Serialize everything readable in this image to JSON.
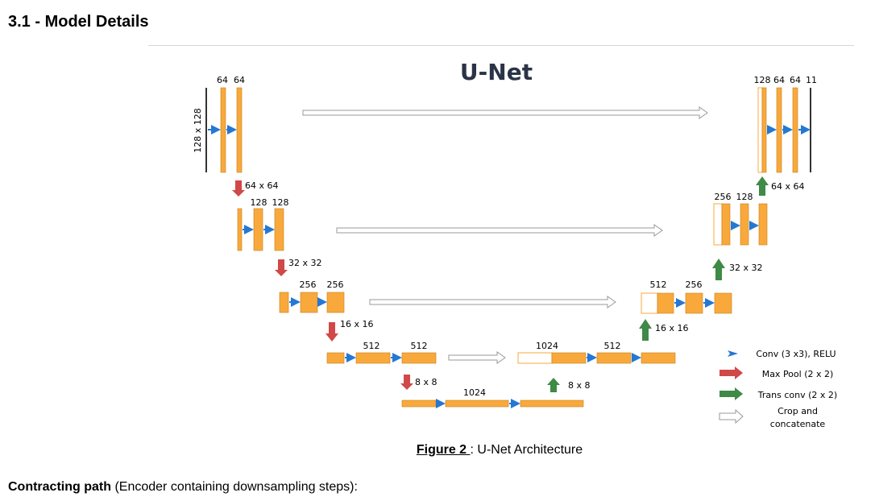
{
  "section": {
    "heading": "3.1 - Model Details"
  },
  "diagram": {
    "title": "U-Net",
    "input_size": "128 x 128",
    "enc1": {
      "ch_a": "64",
      "ch_b": "64"
    },
    "down1": "64 x 64",
    "enc2": {
      "ch_a": "128",
      "ch_b": "128"
    },
    "down2": "32 x 32",
    "enc3": {
      "ch_a": "256",
      "ch_b": "256"
    },
    "down3": "16 x 16",
    "enc4": {
      "ch_a": "512",
      "ch_b": "512"
    },
    "down4": "8 x 8",
    "bottleneck": {
      "ch": "1024"
    },
    "up4": "8 x 8",
    "dec4": {
      "ch_a": "1024",
      "ch_b": "512"
    },
    "up3": "16 x 16",
    "dec3": {
      "ch_a": "512",
      "ch_b": "256"
    },
    "up2": "32 x 32",
    "dec2": {
      "ch_a": "256",
      "ch_b": "128"
    },
    "up1": "64 x 64",
    "dec1": {
      "ch_a": "128",
      "ch_b": "64",
      "ch_c": "64",
      "ch_d": "11"
    },
    "legend": {
      "conv": "Conv (3 x3), RELU",
      "maxpool": "Max Pool (2 x 2)",
      "transconv": "Trans conv (2 x 2)",
      "crop_line1": "Crop and",
      "crop_line2": "concatenate"
    },
    "colors": {
      "block": "#f9a93c",
      "conv_arrow": "#2478d4",
      "pool_arrow": "#d04848",
      "up_arrow": "#3f8a46",
      "skip_arrow": "#b8b8b8",
      "title": "#2b3447"
    }
  },
  "figure": {
    "label": "Figure 2 ",
    "rest": ": U-Net Architecture"
  },
  "paragraph": {
    "bold": "Contracting path",
    "rest": " (Encoder containing downsampling steps):"
  }
}
